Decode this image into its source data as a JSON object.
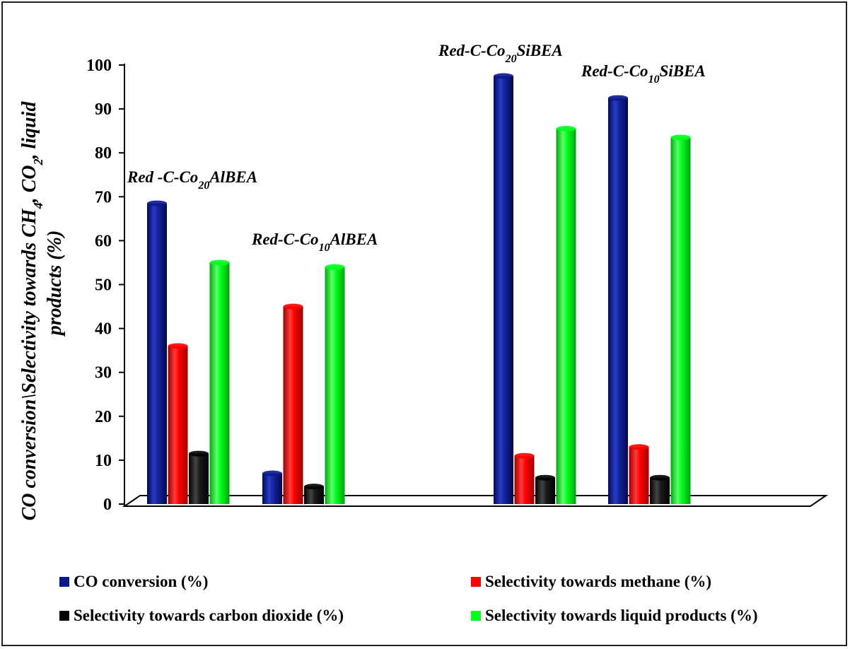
{
  "chart_data": {
    "type": "bar",
    "ylabel_line1": "CO conversion\\Selectivity towards CH",
    "ylabel_sub1": "4",
    "ylabel_mid": ", CO",
    "ylabel_sub2": "2",
    "ylabel_end": ", liquid",
    "ylabel_line2": "products (%)",
    "ylim": [
      0,
      100
    ],
    "yticks": [
      "0",
      "10",
      "20",
      "30",
      "40",
      "50",
      "60",
      "70",
      "80",
      "90",
      "100"
    ],
    "groups": [
      {
        "pre": "Red -C-Co",
        "sub": "20",
        "post": "AlBEA"
      },
      {
        "pre": "Red-C-Co",
        "sub": "10",
        "post": "AlBEA"
      },
      {
        "pre": "Red-C-Co",
        "sub": "20",
        "post": "SiBEA"
      },
      {
        "pre": "Red-C-Co",
        "sub": "10",
        "post": "SiBEA"
      }
    ],
    "series": [
      {
        "name": "CO conversion (%)",
        "color": "#0a1a8c",
        "values": [
          68.5,
          7,
          97.5,
          92.5
        ]
      },
      {
        "name": "Selectivity towards methane (%)",
        "color": "#ff0000",
        "values": [
          36,
          45,
          11,
          13
        ]
      },
      {
        "name": "Selectivity towards carbon dioxide (%)",
        "color": "#000000",
        "values": [
          11.5,
          4,
          6,
          6
        ]
      },
      {
        "name": "Selectivity towards liquid products (%)",
        "color": "#00ff1e",
        "values": [
          55,
          54,
          85.5,
          83.5
        ]
      }
    ],
    "grid": false,
    "legend_position": "bottom"
  }
}
